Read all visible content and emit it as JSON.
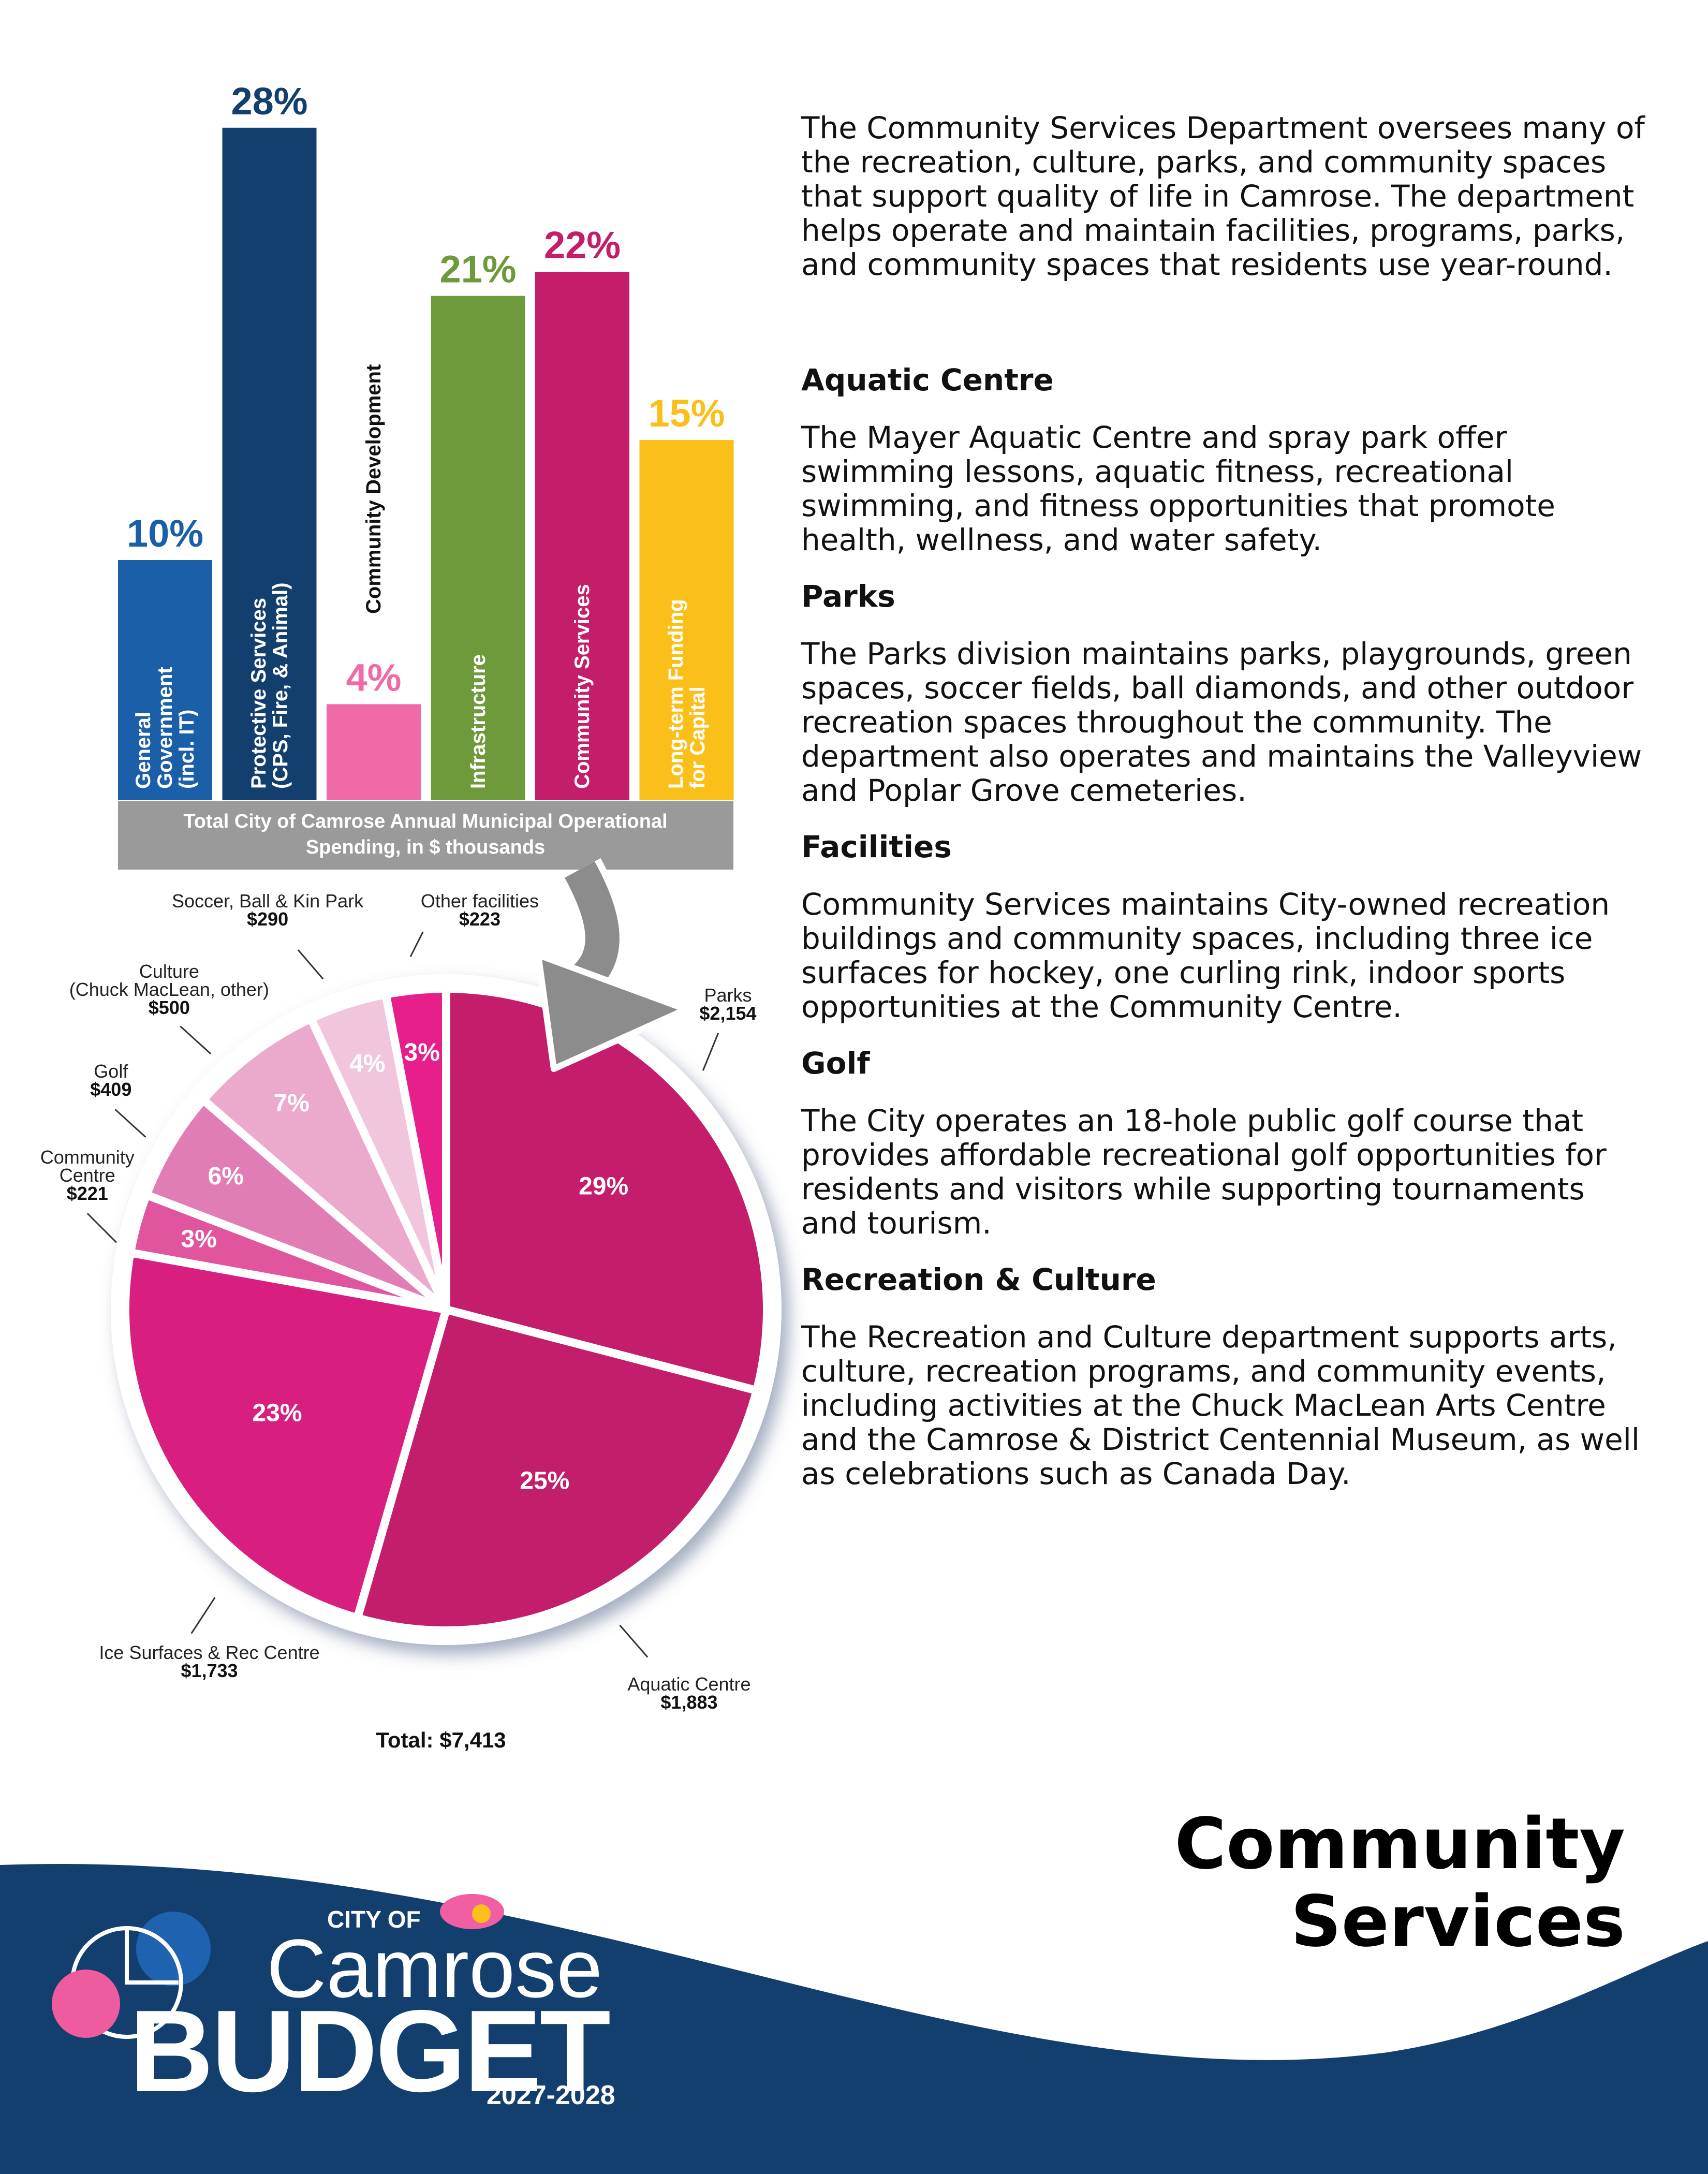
{
  "chart_data": [
    {
      "type": "bar",
      "categories": [
        "General Government (incl. IT)",
        "Protective Services (CPS, Fire, & Animal)",
        "Community Development",
        "Infrastructure",
        "Community Services",
        "Long-term Funding for Capital"
      ],
      "values": [
        10,
        28,
        4,
        21,
        22,
        15
      ],
      "value_labels": [
        "10%",
        "28%",
        "4%",
        "21%",
        "22%",
        "15%"
      ],
      "colors": [
        "#1a5fa8",
        "#133f6e",
        "#f06aa8",
        "#6f9a3c",
        "#c41e6a",
        "#fbbf1a"
      ],
      "caption": "Total City of Camrose Annual Municipal Operational Spending, in $ thousands"
    },
    {
      "type": "pie",
      "categories": [
        "Parks",
        "Aquatic Centre",
        "Ice Surfaces & Rec Centre",
        "Community\nCentre",
        "Golf",
        "Culture\n(Chuck MacLean, other)",
        "Soccer, Ball & Kin Park",
        "Other facilities"
      ],
      "values": [
        2154,
        1883,
        1733,
        221,
        409,
        500,
        290,
        223
      ],
      "value_labels": [
        "$2,154",
        "$1,883",
        "$1,733",
        "$221",
        "$409",
        "$500",
        "$290",
        "$223"
      ],
      "percent_labels": [
        "29%",
        "25%",
        "23%",
        "3%",
        "6%",
        "7%",
        "4%",
        "3%"
      ],
      "colors": [
        "#c41d6b",
        "#c21e6b",
        "#d81f80",
        "#e0559e",
        "#e07db5",
        "#eba9cb",
        "#f1c6dc",
        "#e61f8a"
      ],
      "total_label": "Total: $7,413"
    }
  ],
  "intro": "The Community Services Department oversees many of the recreation, culture, parks, and community spaces that support quality of life in Camrose. The department helps operate and maintain facilities, programs, parks, and community spaces that residents use year-round.",
  "sections": [
    {
      "heading": "Aquatic Centre",
      "body": "The Mayer Aquatic Centre and spray park offer swimming lessons, aquatic fitness, recreational swimming, and fitness opportunities that promote health, wellness, and water safety."
    },
    {
      "heading": "Parks",
      "body": "The Parks division maintains parks, playgrounds, green spaces, soccer fields, ball diamonds, and other outdoor recreation spaces throughout the community. The department also operates and maintains the Valleyview and Poplar Grove cemeteries."
    },
    {
      "heading": "Facilities",
      "body": "Community Services maintains City-owned recreation buildings and community spaces, including three ice surfaces for hockey, one curling rink, indoor sports opportunities at the Community Centre."
    },
    {
      "heading": "Golf",
      "body": "The City operates an 18-hole public golf course that provides affordable recreational golf opportunities for residents and visitors while supporting tournaments and tourism."
    },
    {
      "heading": "Recreation & Culture",
      "body": "The Recreation and Culture department supports arts, culture, recreation programs, and community events, including activities at the Chuck MacLean Arts Centre and the Camrose & District Centennial Museum, as well as celebrations such as Canada Day."
    }
  ],
  "footer": {
    "title": "Community Services",
    "logo": {
      "city_of": "CITY OF",
      "name": "Camrose",
      "budget": "BUDGET",
      "years": "2027-2028"
    }
  }
}
